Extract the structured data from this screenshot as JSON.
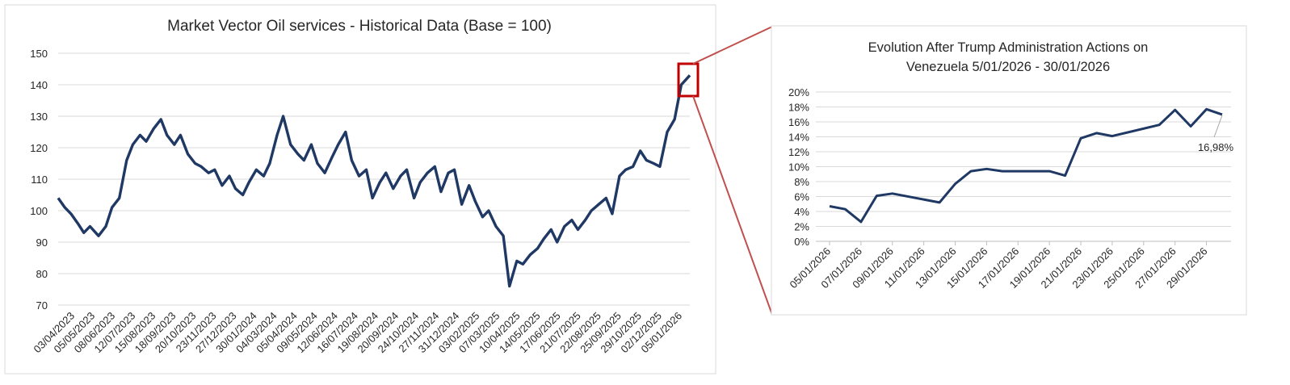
{
  "chart_data": [
    {
      "type": "line",
      "title": "Market Vector Oil services - Historical Data (Base = 100)",
      "xlabel": "",
      "ylabel": "",
      "ylim": [
        70,
        150
      ],
      "yticks": [
        70,
        80,
        90,
        100,
        110,
        120,
        130,
        140,
        150
      ],
      "xticks": [
        "03/04/2023",
        "05/05/2023",
        "08/06/2023",
        "12/07/2023",
        "15/08/2023",
        "18/09/2023",
        "20/10/2023",
        "23/11/2023",
        "27/12/2023",
        "30/01/2024",
        "04/03/2024",
        "05/04/2024",
        "09/05/2024",
        "12/06/2024",
        "16/07/2024",
        "19/08/2024",
        "20/09/2024",
        "24/10/2024",
        "27/11/2024",
        "31/12/2024",
        "03/02/2025",
        "07/03/2025",
        "10/04/2025",
        "14/05/2025",
        "17/06/2025",
        "21/07/2025",
        "22/08/2025",
        "25/09/2025",
        "29/10/2025",
        "02/12/2025",
        "05/01/2026"
      ],
      "grid": true,
      "legend": "none",
      "line_color": "#1f3864",
      "highlight_color": "#c00000",
      "series": [
        {
          "x": [
            "03/04/2023",
            "14/04/2023",
            "24/04/2023",
            "05/05/2023",
            "15/05/2023",
            "25/05/2023",
            "08/06/2023",
            "20/06/2023",
            "30/06/2023",
            "12/07/2023",
            "24/07/2023",
            "03/08/2023",
            "15/08/2023",
            "25/08/2023",
            "06/09/2023",
            "18/09/2023",
            "28/09/2023",
            "10/10/2023",
            "20/10/2023",
            "01/11/2023",
            "13/11/2023",
            "23/11/2023",
            "05/12/2023",
            "15/12/2023",
            "27/12/2023",
            "08/01/2024",
            "18/01/2024",
            "30/01/2024",
            "09/02/2024",
            "21/02/2024",
            "04/03/2024",
            "14/03/2024",
            "26/03/2024",
            "05/04/2024",
            "17/04/2024",
            "29/04/2024",
            "09/05/2024",
            "21/05/2024",
            "31/05/2024",
            "12/06/2024",
            "24/06/2024",
            "04/07/2024",
            "16/07/2024",
            "26/07/2024",
            "07/08/2024",
            "19/08/2024",
            "29/08/2024",
            "10/09/2024",
            "20/09/2024",
            "02/10/2024",
            "14/10/2024",
            "24/10/2024",
            "05/11/2024",
            "15/11/2024",
            "27/11/2024",
            "09/12/2024",
            "19/12/2024",
            "31/12/2024",
            "10/01/2025",
            "22/01/2025",
            "03/02/2025",
            "13/02/2025",
            "25/02/2025",
            "07/03/2025",
            "19/03/2025",
            "31/03/2025",
            "10/04/2025",
            "22/04/2025",
            "02/05/2025",
            "14/05/2025",
            "26/05/2025",
            "05/06/2025",
            "17/06/2025",
            "27/06/2025",
            "09/07/2025",
            "21/07/2025",
            "31/07/2025",
            "12/08/2025",
            "22/08/2025",
            "03/09/2025",
            "15/09/2025",
            "25/09/2025",
            "07/10/2025",
            "17/10/2025",
            "29/10/2025",
            "10/11/2025",
            "20/11/2025",
            "02/12/2025",
            "12/12/2025",
            "24/12/2025",
            "05/01/2026",
            "16/01/2026",
            "30/01/2026"
          ],
          "values": [
            104,
            101,
            99,
            96,
            93,
            95,
            92,
            95,
            101,
            104,
            116,
            121,
            124,
            122,
            126,
            129,
            124,
            121,
            124,
            118,
            115,
            114,
            112,
            113,
            108,
            111,
            107,
            105,
            109,
            113,
            111,
            115,
            124,
            130,
            121,
            118,
            116,
            121,
            115,
            112,
            117,
            121,
            125,
            116,
            111,
            113,
            104,
            109,
            112,
            107,
            111,
            113,
            104,
            109,
            112,
            114,
            106,
            112,
            113,
            102,
            108,
            103,
            98,
            100,
            95,
            92,
            76,
            84,
            83,
            86,
            88,
            91,
            94,
            90,
            95,
            97,
            94,
            97,
            100,
            102,
            104,
            99,
            111,
            113,
            114,
            119,
            116,
            115,
            114,
            125,
            129,
            140,
            143
          ]
        }
      ]
    },
    {
      "type": "line",
      "title": "Evolution After Trump Administration Actions on Venezuela 5/01/2026 - 30/01/2026",
      "xlabel": "",
      "ylabel": "",
      "ylim": [
        0,
        20
      ],
      "yticks": [
        "0%",
        "2%",
        "4%",
        "6%",
        "8%",
        "10%",
        "12%",
        "14%",
        "16%",
        "18%",
        "20%"
      ],
      "xticks": [
        "05/01/2026",
        "07/01/2026",
        "09/01/2026",
        "11/01/2026",
        "13/01/2026",
        "15/01/2026",
        "17/01/2026",
        "19/01/2026",
        "21/01/2026",
        "23/01/2026",
        "25/01/2026",
        "27/01/2026",
        "29/01/2026"
      ],
      "grid": true,
      "legend": "none",
      "line_color": "#1f3864",
      "annotation": "16,98%",
      "series": [
        {
          "x": [
            "05/01/2026",
            "06/01/2026",
            "07/01/2026",
            "08/01/2026",
            "09/01/2026",
            "12/01/2026",
            "13/01/2026",
            "14/01/2026",
            "15/01/2026",
            "16/01/2026",
            "19/01/2026",
            "20/01/2026",
            "21/01/2026",
            "22/01/2026",
            "23/01/2026",
            "26/01/2026",
            "27/01/2026",
            "28/01/2026",
            "29/01/2026",
            "30/01/2026"
          ],
          "values": [
            4.7,
            4.3,
            2.6,
            6.1,
            6.4,
            5.2,
            7.7,
            9.4,
            9.7,
            9.4,
            9.4,
            8.8,
            13.8,
            14.5,
            14.1,
            15.6,
            17.6,
            15.4,
            17.7,
            16.98
          ]
        }
      ]
    }
  ]
}
